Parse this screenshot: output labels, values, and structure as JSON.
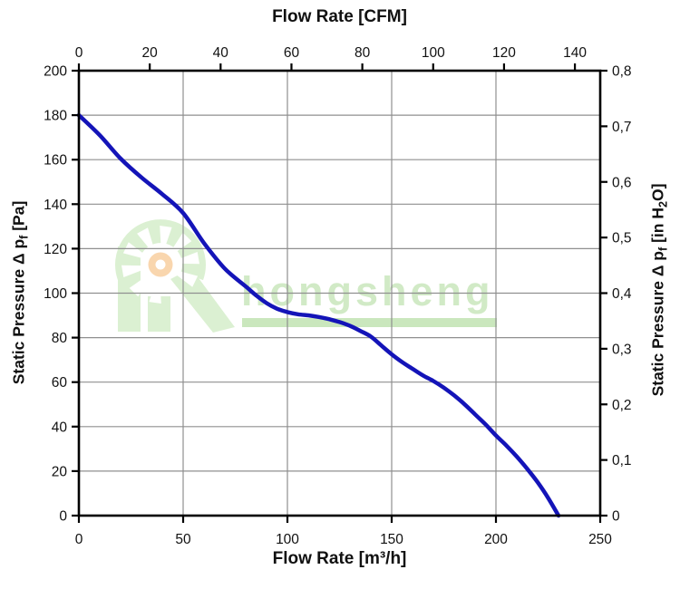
{
  "watermark": {
    "brand_text": "hongsheng",
    "text_color": "#cfe9c3",
    "bar_color": "#c8e6ba",
    "logo": {
      "body_color": "#daf0d0",
      "ray_color": "#ffffff",
      "hub_ring_color": "#f9d4aa",
      "hub_core_color": "#ffffff"
    }
  },
  "chart_data": {
    "type": "line",
    "grid": {
      "show": true,
      "color": "#8f8f8f"
    },
    "x_top": {
      "label": "Flow Rate [CFM]",
      "unit": "CFM",
      "min": 0,
      "max": 140,
      "tick_values": [
        0,
        20,
        40,
        60,
        80,
        100,
        120,
        140
      ],
      "m3h_per_cfm": 1.699
    },
    "x_bottom": {
      "label": "Flow Rate [m³/h]",
      "unit": "m³/h",
      "min": 0,
      "max": 250,
      "tick_values": [
        0,
        50,
        100,
        150,
        200,
        250
      ]
    },
    "y_left": {
      "label_pre": "Static Pressure Δ p",
      "label_sub": "f",
      "label_post": " [Pa]",
      "unit": "Pa",
      "min": 0,
      "max": 200,
      "tick_values": [
        0,
        20,
        40,
        60,
        80,
        100,
        120,
        140,
        160,
        180,
        200
      ]
    },
    "y_right": {
      "label_pre": "Static Pressure Δ p",
      "label_sub": "f",
      "label_mid": " [in H",
      "label_sub2": "2",
      "label_post": "O]",
      "unit": "in H2O",
      "min": 0,
      "max": 0.8,
      "ticks": [
        {
          "value": 0.0,
          "label": "0"
        },
        {
          "value": 0.1,
          "label": "0,1"
        },
        {
          "value": 0.2,
          "label": "0,2"
        },
        {
          "value": 0.3,
          "label": "0,3"
        },
        {
          "value": 0.4,
          "label": "0,4"
        },
        {
          "value": 0.5,
          "label": "0,5"
        },
        {
          "value": 0.6,
          "label": "0,6"
        },
        {
          "value": 0.7,
          "label": "0,7"
        },
        {
          "value": 0.8,
          "label": "0,8"
        }
      ]
    },
    "series": [
      {
        "name": "static-pressure-vs-flow",
        "color": "#1414b8",
        "line_width": 4.5,
        "points_m3h_pa": [
          [
            0,
            180
          ],
          [
            10,
            171
          ],
          [
            20,
            160.5
          ],
          [
            30,
            152
          ],
          [
            40,
            144.5
          ],
          [
            50,
            136
          ],
          [
            60,
            122.5
          ],
          [
            70,
            111
          ],
          [
            80,
            103
          ],
          [
            85,
            99
          ],
          [
            90,
            95.5
          ],
          [
            95,
            93
          ],
          [
            100,
            91.5
          ],
          [
            105,
            90.5
          ],
          [
            110,
            90
          ],
          [
            115,
            89.3
          ],
          [
            120,
            88.3
          ],
          [
            125,
            87
          ],
          [
            130,
            85.3
          ],
          [
            135,
            83
          ],
          [
            140,
            80.5
          ],
          [
            145,
            76.5
          ],
          [
            150,
            72.5
          ],
          [
            155,
            69
          ],
          [
            160,
            66
          ],
          [
            165,
            63
          ],
          [
            170,
            60.5
          ],
          [
            175,
            57.5
          ],
          [
            180,
            54
          ],
          [
            185,
            50
          ],
          [
            190,
            45.5
          ],
          [
            195,
            41
          ],
          [
            200,
            36
          ],
          [
            205,
            31.5
          ],
          [
            210,
            26.5
          ],
          [
            215,
            21
          ],
          [
            220,
            15
          ],
          [
            225,
            8
          ],
          [
            230,
            0
          ]
        ]
      }
    ]
  }
}
